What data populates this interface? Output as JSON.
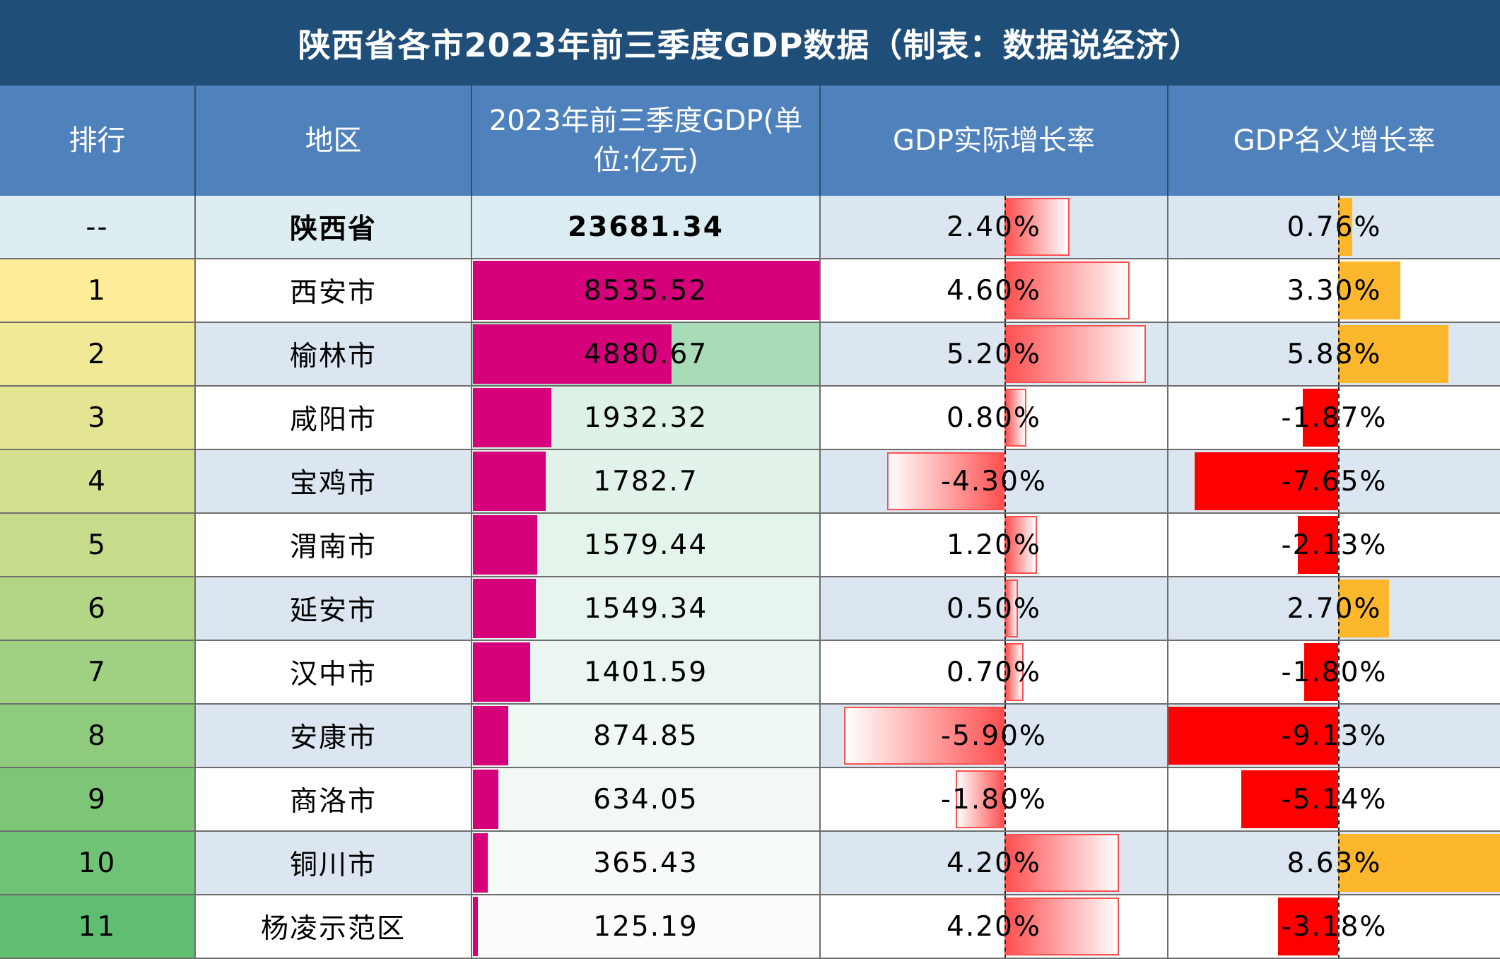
{
  "title": "陕西省各市2023年前三季度GDP数据（制表：数据说经济）",
  "headers": {
    "rank": "排行",
    "region": "地区",
    "gdp": "2023年前三季度GDP(单位:亿元)",
    "real_growth": "GDP实际增长率",
    "nominal_growth": "GDP名义增长率"
  },
  "colors": {
    "title_bg": "#1f4e79",
    "header_bg": "#4f81bd",
    "gdp_bar": "#d5007a",
    "real_growth_bar": "#ff5050",
    "nominal_positive": "#fdb72d",
    "nominal_negative": "#ff0000"
  },
  "chart_data": {
    "type": "table",
    "columns": [
      "排行",
      "地区",
      "2023年前三季度GDP(单位:亿元)",
      "GDP实际增长率",
      "GDP名义增长率"
    ],
    "rows": [
      {
        "rank": "--",
        "region": "陕西省",
        "gdp": "23681.34",
        "gdp_value": 23681.34,
        "real": "2.40%",
        "real_value": 2.4,
        "nominal": "0.76%",
        "nominal_value": 0.76,
        "is_total": true
      },
      {
        "rank": "1",
        "region": "西安市",
        "gdp": "8535.52",
        "gdp_value": 8535.52,
        "real": "4.60%",
        "real_value": 4.6,
        "nominal": "3.30%",
        "nominal_value": 3.3
      },
      {
        "rank": "2",
        "region": "榆林市",
        "gdp": "4880.67",
        "gdp_value": 4880.67,
        "real": "5.20%",
        "real_value": 5.2,
        "nominal": "5.88%",
        "nominal_value": 5.88
      },
      {
        "rank": "3",
        "region": "咸阳市",
        "gdp": "1932.32",
        "gdp_value": 1932.32,
        "real": "0.80%",
        "real_value": 0.8,
        "nominal": "-1.87%",
        "nominal_value": -1.87
      },
      {
        "rank": "4",
        "region": "宝鸡市",
        "gdp": "1782.7",
        "gdp_value": 1782.7,
        "real": "-4.30%",
        "real_value": -4.3,
        "nominal": "-7.65%",
        "nominal_value": -7.65
      },
      {
        "rank": "5",
        "region": "渭南市",
        "gdp": "1579.44",
        "gdp_value": 1579.44,
        "real": "1.20%",
        "real_value": 1.2,
        "nominal": "-2.13%",
        "nominal_value": -2.13
      },
      {
        "rank": "6",
        "region": "延安市",
        "gdp": "1549.34",
        "gdp_value": 1549.34,
        "real": "0.50%",
        "real_value": 0.5,
        "nominal": "2.70%",
        "nominal_value": 2.7
      },
      {
        "rank": "7",
        "region": "汉中市",
        "gdp": "1401.59",
        "gdp_value": 1401.59,
        "real": "0.70%",
        "real_value": 0.7,
        "nominal": "-1.80%",
        "nominal_value": -1.8
      },
      {
        "rank": "8",
        "region": "安康市",
        "gdp": "874.85",
        "gdp_value": 874.85,
        "real": "-5.90%",
        "real_value": -5.9,
        "nominal": "-9.13%",
        "nominal_value": -9.13
      },
      {
        "rank": "9",
        "region": "商洛市",
        "gdp": "634.05",
        "gdp_value": 634.05,
        "real": "-1.80%",
        "real_value": -1.8,
        "nominal": "-5.14%",
        "nominal_value": -5.14
      },
      {
        "rank": "10",
        "region": "铜川市",
        "gdp": "365.43",
        "gdp_value": 365.43,
        "real": "4.20%",
        "real_value": 4.2,
        "nominal": "8.63%",
        "nominal_value": 8.63
      },
      {
        "rank": "11",
        "region": "杨凌示范区",
        "gdp": "125.19",
        "gdp_value": 125.19,
        "real": "4.20%",
        "real_value": 4.2,
        "nominal": "-3.18%",
        "nominal_value": -3.18
      }
    ]
  }
}
